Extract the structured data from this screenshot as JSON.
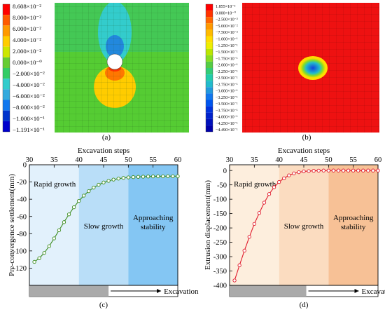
{
  "panels": {
    "a": {
      "caption": "(a)",
      "legend": {
        "labels": [
          "8.608×10⁻²",
          "8.000×10⁻²",
          "6.000×10⁻²",
          "4.000×10⁻²",
          "2.000×10⁻²",
          "0.000×10⁻⁰",
          "−2.000×10⁻²",
          "−4.000×10⁻²",
          "−6.000×10⁻²",
          "−8.000×10⁻²",
          "−1.000×10⁻¹",
          "−1.191×10⁻¹"
        ],
        "colors": [
          "#ff0000",
          "#ff5a00",
          "#ff9900",
          "#ffcc00",
          "#cce600",
          "#66cc33",
          "#33cc66",
          "#33cccc",
          "#33aadd",
          "#1177ee",
          "#0033cc",
          "#0000cc"
        ]
      },
      "field_colors": {
        "base": "#55cc33",
        "top": "#44c855",
        "upper_lobe": "#33cccc",
        "lower_lobe": "#ffcc00",
        "hot_spot": "#ff3300"
      }
    },
    "b": {
      "caption": "(b)",
      "legend": {
        "labels": [
          "1.855×10⁻³",
          "0.000×10⁻⁰",
          "−2.500×10⁻²",
          "−5.000×10⁻²",
          "−7.500×10⁻²",
          "−1.000×10⁻¹",
          "−1.250×10⁻¹",
          "−1.500×10⁻¹",
          "−1.750×10⁻¹",
          "−2.000×10⁻¹",
          "−2.250×10⁻¹",
          "−2.500×10⁻¹",
          "−2.750×10⁻¹",
          "−3.000×10⁻¹",
          "−3.250×10⁻¹",
          "−3.500×10⁻¹",
          "−3.750×10⁻¹",
          "−4.000×10⁻¹",
          "−4.250×10⁻¹",
          "−4.490×10⁻¹"
        ],
        "colors": [
          "#ff0000",
          "#ff3300",
          "#ff6600",
          "#ff9900",
          "#ffbb00",
          "#ffdd00",
          "#eeee00",
          "#bbe600",
          "#88dd22",
          "#55cc44",
          "#33cc77",
          "#22ccaa",
          "#22bbcc",
          "#2299dd",
          "#1177ee",
          "#0055ee",
          "#0033dd",
          "#0022cc",
          "#0011bb",
          "#0000aa"
        ]
      },
      "field_colors": {
        "base": "#ee1111",
        "ring": "#ffdd00",
        "core": "#1177ee"
      }
    },
    "c": {
      "caption": "(c)",
      "chart_data": {
        "type": "line",
        "xlabel": "Excavation steps",
        "ylabel": "Pre-convergence settlement(mm)",
        "xlim": [
          30,
          60
        ],
        "ylim": [
          -140,
          0
        ],
        "x_ticks": [
          30,
          35,
          40,
          45,
          50,
          55,
          60
        ],
        "y_ticks": [
          -120,
          -100,
          -80,
          -60,
          -40,
          -20,
          0
        ],
        "x_axis_position": "top",
        "grid": false,
        "x": [
          31,
          32,
          33,
          34,
          35,
          36,
          37,
          38,
          39,
          40,
          41,
          42,
          43,
          44,
          45,
          46,
          47,
          48,
          49,
          50,
          51,
          52,
          53,
          54,
          55,
          56,
          57,
          58,
          59,
          60
        ],
        "series": [
          {
            "values": [
              -112.7,
              -108.5,
              -102.4,
              -94.5,
              -85.5,
              -76.0,
              -66.6,
              -57.6,
              -49.3,
              -42.0,
              -35.8,
              -30.6,
              -26.5,
              -23.2,
              -20.6,
              -18.7,
              -17.2,
              -16.1,
              -15.3,
              -14.7,
              -14.3,
              -14.0,
              -13.8,
              -13.6,
              -13.5,
              -13.4,
              -13.4,
              -13.3,
              -13.3,
              -13.3
            ],
            "color": "#3c8c1e",
            "marker": "circle-open"
          }
        ],
        "regions": [
          {
            "label": "Rapid growth",
            "from": 30,
            "to": 40,
            "color": "#e2f1fc"
          },
          {
            "label": "Slow growth",
            "from": 40,
            "to": 50,
            "color": "#b9def8"
          },
          {
            "label": "Approaching stability",
            "label_lines": [
              "Approaching",
              "stability"
            ],
            "from": 50,
            "to": 60,
            "color": "#84c6f3"
          }
        ],
        "excavation_bar": {
          "label": "Excavation",
          "from": 30,
          "to": 46,
          "color": "#aaaaaa"
        }
      }
    },
    "d": {
      "caption": "(d)",
      "chart_data": {
        "type": "line",
        "xlabel": "Excavation steps",
        "ylabel": "Extrusion displacement(mm)",
        "xlim": [
          30,
          60
        ],
        "ylim": [
          -400,
          20
        ],
        "x_ticks": [
          30,
          35,
          40,
          45,
          50,
          55,
          60
        ],
        "y_ticks": [
          -400,
          -350,
          -300,
          -250,
          -200,
          -150,
          -100,
          -50,
          0
        ],
        "x_axis_position": "top",
        "grid": false,
        "x": [
          31,
          32,
          33,
          34,
          35,
          36,
          37,
          38,
          39,
          40,
          41,
          42,
          43,
          44,
          45,
          46,
          47,
          48,
          49,
          50,
          51,
          52,
          53,
          54,
          55,
          56,
          57,
          58,
          59,
          60
        ],
        "series": [
          {
            "values": [
              -383,
              -330,
              -279,
              -231,
              -186,
              -148,
              -112,
              -82,
              -58,
              -40,
              -27,
              -17,
              -10,
              -6,
              -3,
              -2,
              -1,
              -0.5,
              0,
              0,
              0,
              0,
              0,
              0,
              0,
              0,
              0,
              0,
              0,
              0
            ],
            "color": "#e01a2b",
            "marker": "circle-open"
          }
        ],
        "regions": [
          {
            "label": "Rapid growth",
            "from": 30,
            "to": 40,
            "color": "#fdeedd"
          },
          {
            "label": "Slow growth",
            "from": 40,
            "to": 50,
            "color": "#fbdcc0"
          },
          {
            "label": "Approaching stability",
            "label_lines": [
              "Approaching",
              "stability"
            ],
            "from": 50,
            "to": 60,
            "color": "#f7c196"
          }
        ],
        "excavation_bar": {
          "label": "Excavation",
          "from": 30,
          "to": 45.5,
          "color": "#aaaaaa"
        }
      }
    }
  }
}
